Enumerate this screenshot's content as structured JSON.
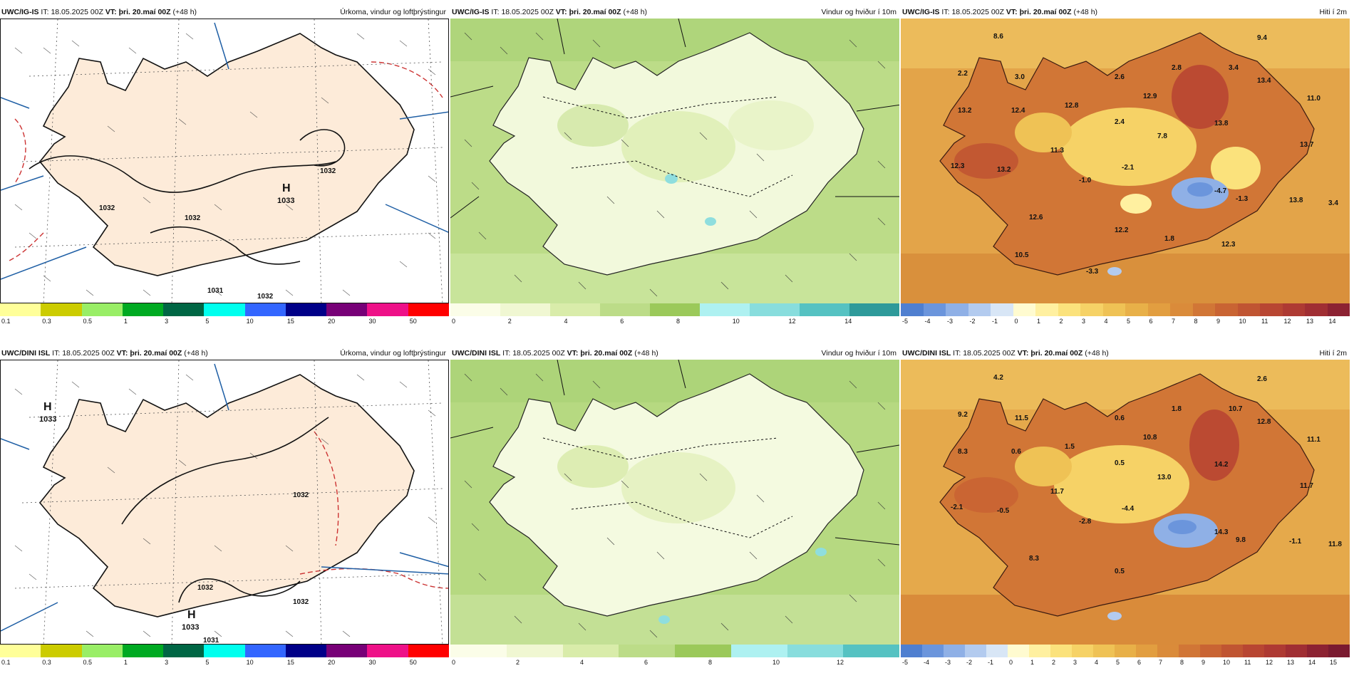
{
  "header": {
    "issue_label": "IT:",
    "issue_time": "18.05.2025 00Z",
    "valid_label": "VT:",
    "valid_time": "þri. 20.maí 00Z",
    "lead": "(+48 h)"
  },
  "rows": [
    {
      "model": "UWC/IG-IS",
      "panels": [
        {
          "title": "Úrkoma, vindur og loftþrýstingur",
          "type": "precip",
          "highs": [
            {
              "letter": "H",
              "value": "1033"
            }
          ],
          "isobars": [
            "1032",
            "1032",
            "1032",
            "1031",
            "1032"
          ]
        },
        {
          "title": "Vindur og hviður í 10m",
          "type": "wind"
        },
        {
          "title": "Hiti í 2m",
          "type": "temp",
          "temps": [
            "8.6",
            "9.4",
            "2.2",
            "3.0",
            "2.6",
            "2.8",
            "3.4",
            "13.4",
            "12.8",
            "12.9",
            "11.0",
            "13.2",
            "12.4",
            "2.4",
            "13.8",
            "7.8",
            "13.7",
            "11.3",
            "12.3",
            "13.2",
            "-2.1",
            "-1.0",
            "-4.7",
            "-1.3",
            "13.8",
            "3.4",
            "12.6",
            "12.2",
            "1.8",
            "12.3",
            "10.5",
            "-3.3"
          ]
        }
      ]
    },
    {
      "model": "UWC/DINI ISL",
      "panels": [
        {
          "title": "Úrkoma, vindur og loftþrýstingur",
          "type": "precip",
          "highs": [
            {
              "letter": "H",
              "value": "1033"
            },
            {
              "letter": "H",
              "value": "1033"
            }
          ],
          "isobars": [
            "1032",
            "1032",
            "1032",
            "1031"
          ]
        },
        {
          "title": "Vindur og hviður í 10m",
          "type": "wind"
        },
        {
          "title": "Hiti í 2m",
          "type": "temp",
          "temps": [
            "4.2",
            "2.6",
            "9.2",
            "11.5",
            "0.6",
            "1.8",
            "10.7",
            "12.8",
            "1.5",
            "10.8",
            "11.1",
            "8.3",
            "0.6",
            "0.5",
            "14.2",
            "13.0",
            "11.7",
            "11.7",
            "-2.1",
            "-0.5",
            "-4.4",
            "-2.8",
            "14.3",
            "9.8",
            "-1.1",
            "11.8",
            "8.3",
            "0.5"
          ]
        }
      ]
    }
  ],
  "legends": {
    "precip": {
      "ticks": [
        "0.1",
        "0.3",
        "0.5",
        "1",
        "3",
        "5",
        "10",
        "15",
        "20",
        "30",
        "50"
      ],
      "colors": [
        "#ffff99",
        "#cccc00",
        "#99ee66",
        "#00aa22",
        "#006644",
        "#00ffee",
        "#3366ff",
        "#000088",
        "#770077",
        "#ee1188",
        "#ff0000"
      ]
    },
    "wind_top": {
      "ticks": [
        "0",
        "2",
        "4",
        "6",
        "8",
        "10",
        "12",
        "14"
      ],
      "colors": [
        "#fbfde8",
        "#f0f7d2",
        "#d9ecaa",
        "#bcdc88",
        "#9bc95a",
        "#aef1f1",
        "#88dddd",
        "#55c2c2",
        "#2e9a9a"
      ]
    },
    "wind_bottom": {
      "ticks": [
        "0",
        "2",
        "4",
        "6",
        "8",
        "10",
        "12"
      ],
      "colors": [
        "#fbfde8",
        "#f0f7d2",
        "#d9ecaa",
        "#bcdc88",
        "#9bc95a",
        "#aef1f1",
        "#88dddd",
        "#55c2c2"
      ]
    },
    "temp_top": {
      "ticks": [
        "-5",
        "-4",
        "-3",
        "-2",
        "-1",
        "0",
        "1",
        "2",
        "3",
        "4",
        "5",
        "6",
        "7",
        "8",
        "9",
        "10",
        "11",
        "12",
        "13",
        "14"
      ],
      "colors": [
        "#4f7fd0",
        "#6b95dc",
        "#8fb0e6",
        "#b3cbef",
        "#d8e6f6",
        "#fffbd0",
        "#fff0a0",
        "#fbe27c",
        "#f6d266",
        "#efc255",
        "#e8b048",
        "#e29e40",
        "#da8b3a",
        "#d17636",
        "#c96433",
        "#c05532",
        "#b84632",
        "#ae3a33",
        "#a02e33",
        "#8c2232"
      ]
    },
    "temp_bottom": {
      "ticks": [
        "-5",
        "-4",
        "-3",
        "-2",
        "-1",
        "0",
        "1",
        "2",
        "3",
        "4",
        "5",
        "6",
        "7",
        "8",
        "9",
        "10",
        "11",
        "12",
        "13",
        "14",
        "15"
      ],
      "colors": [
        "#4f7fd0",
        "#6b95dc",
        "#8fb0e6",
        "#b3cbef",
        "#d8e6f6",
        "#fffbd0",
        "#fff0a0",
        "#fbe27c",
        "#f6d266",
        "#efc255",
        "#e8b048",
        "#e29e40",
        "#da8b3a",
        "#d17636",
        "#c96433",
        "#c05532",
        "#b84632",
        "#ae3a33",
        "#a02e33",
        "#8c2232",
        "#7a1a30"
      ]
    }
  }
}
